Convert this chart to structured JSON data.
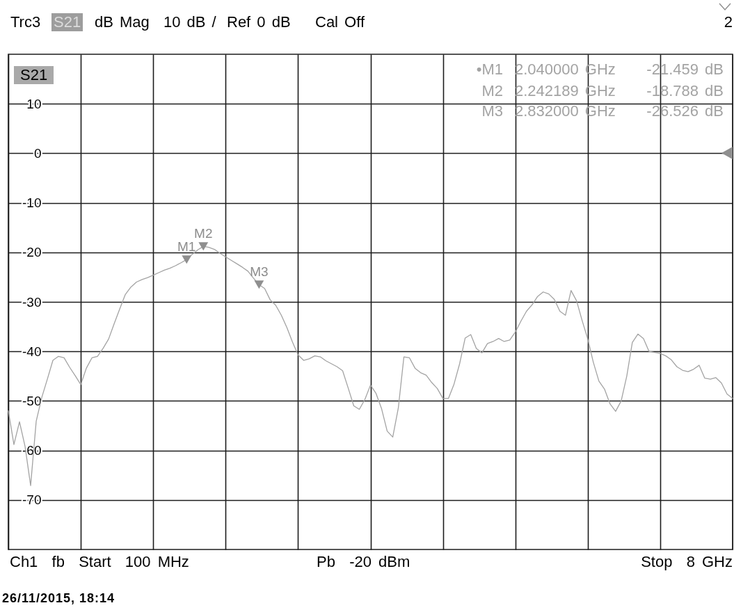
{
  "chart_data": {
    "type": "line",
    "categories": [
      null,
      null,
      null,
      null,
      null,
      null,
      null,
      null,
      null,
      null,
      null,
      null,
      null,
      null,
      null,
      null,
      null,
      null,
      null,
      null,
      null,
      null,
      null,
      null,
      null,
      null,
      null,
      null,
      null,
      null,
      null,
      null,
      null,
      null,
      null,
      null,
      null,
      null,
      null,
      null,
      null,
      null,
      null,
      null,
      null,
      null,
      null,
      null,
      null,
      null,
      null,
      null,
      null,
      null,
      null,
      null,
      null,
      null,
      null,
      null,
      null,
      null,
      null,
      null,
      null,
      null,
      null,
      null,
      null,
      null,
      null,
      null,
      null,
      null,
      null,
      null,
      null,
      null,
      null,
      null,
      null,
      null,
      null,
      null,
      null,
      null,
      null,
      null,
      null,
      null,
      null,
      null,
      null,
      null,
      null,
      null,
      null,
      null,
      null,
      null,
      null,
      null,
      null,
      null,
      null,
      null,
      null,
      null,
      null,
      null,
      null,
      null,
      null,
      null,
      null,
      null,
      null,
      null,
      null,
      null,
      null,
      null,
      null,
      null,
      null,
      null,
      null,
      null,
      null,
      null,
      null
    ],
    "ylim": [
      -80,
      20
    ],
    "yticks": [
      10,
      0,
      -10,
      -20,
      -30,
      -40,
      -50,
      -60,
      -70
    ],
    "tick_labels": "y",
    "grid": true,
    "series": [
      {
        "color": "#a3a3a3",
        "values": [
          -52,
          -58.8,
          -54.2,
          -59.2,
          -67.1,
          -54.1,
          -49.3,
          -45.6,
          -41.8,
          -41.0,
          -41.3,
          -43.2,
          -44.9,
          -46.7,
          -43.4,
          -41.3,
          -41.0,
          -39.4,
          -37.5,
          -34.4,
          -31.4,
          -28.5,
          -27.0,
          -26.0,
          -25.5,
          -25.1,
          -24.6,
          -24.1,
          -23.6,
          -23.2,
          -22.7,
          -22.1,
          -21.459,
          -20.4,
          -19.5,
          -18.788,
          -19.0,
          -19.4,
          -20.2,
          -20.9,
          -21.6,
          -22.3,
          -23.0,
          -23.8,
          -25.2,
          -26.526,
          -27.3,
          -29.6,
          -30.7,
          -32.7,
          -35.2,
          -38.1,
          -40.7,
          -41.8,
          -41.5,
          -40.9,
          -41.1,
          -41.9,
          -42.5,
          -43.1,
          -43.9,
          -47.4,
          -51.0,
          -51.7,
          -49.7,
          -46.8,
          -48.5,
          -51.6,
          -56.1,
          -57.3,
          -51.4,
          -41.1,
          -41.3,
          -43.4,
          -44.3,
          -44.8,
          -46.3,
          -47.5,
          -49.5,
          -49.5,
          -46.6,
          -42.5,
          -37.3,
          -36.6,
          -39.4,
          -40.3,
          -38.4,
          -38.0,
          -37.4,
          -38.0,
          -37.7,
          -36.1,
          -33.9,
          -31.9,
          -30.6,
          -28.9,
          -28.0,
          -28.4,
          -29.5,
          -31.9,
          -32.7,
          -27.7,
          -29.8,
          -33.8,
          -37.5,
          -42.2,
          -46.0,
          -47.6,
          -50.6,
          -52.1,
          -50.0,
          -45.0,
          -38.2,
          -36.5,
          -37.4,
          -40.0,
          -40.2,
          -40.4,
          -40.9,
          -41.7,
          -43.1,
          -43.8,
          -44.1,
          -43.6,
          -42.8,
          -45.4,
          -45.6,
          -45.3,
          -46.4,
          -48.6,
          -49.5
        ]
      },
      {
        "type": "scatter",
        "marker": "triangle",
        "color": "#8f8f8f",
        "values": [
          null,
          null,
          null,
          null,
          null,
          null,
          null,
          null,
          null,
          null,
          null,
          null,
          null,
          null,
          null,
          null,
          null,
          null,
          null,
          null,
          null,
          null,
          null,
          null,
          null,
          null,
          null,
          null,
          null,
          null,
          null,
          null,
          -21.459,
          null,
          null,
          -18.788,
          null,
          null,
          null,
          null,
          null,
          null,
          null,
          null,
          null,
          -26.526,
          null,
          null,
          null,
          null,
          null,
          null,
          null,
          null,
          null,
          null,
          null,
          null,
          null,
          null,
          null,
          null,
          null,
          null,
          null,
          null,
          null,
          null,
          null,
          null,
          null,
          null,
          null,
          null,
          null,
          null,
          null,
          null,
          null,
          null,
          null,
          null,
          null,
          null,
          null,
          null,
          null,
          null,
          null,
          null,
          null,
          null,
          null,
          null,
          null,
          null,
          null,
          null,
          null,
          null,
          null,
          null,
          null,
          null,
          null,
          null,
          null,
          null,
          null,
          null,
          null,
          null,
          null,
          null,
          null,
          null,
          null,
          null,
          null,
          null,
          null,
          null,
          null,
          null,
          null,
          null,
          null,
          null,
          null,
          null,
          null
        ],
        "value_labels": [
          null,
          null,
          null,
          null,
          null,
          null,
          null,
          null,
          null,
          null,
          null,
          null,
          null,
          null,
          null,
          null,
          null,
          null,
          null,
          null,
          null,
          null,
          null,
          null,
          null,
          null,
          null,
          null,
          null,
          null,
          null,
          null,
          "M1",
          null,
          null,
          "M2",
          null,
          null,
          null,
          null,
          null,
          null,
          null,
          null,
          null,
          "M3",
          null,
          null,
          null,
          null,
          null,
          null,
          null,
          null,
          null,
          null,
          null,
          null,
          null,
          null,
          null,
          null,
          null,
          null,
          null,
          null,
          null,
          null,
          null,
          null,
          null,
          null,
          null,
          null,
          null,
          null,
          null,
          null,
          null,
          null,
          null,
          null,
          null,
          null,
          null,
          null,
          null,
          null,
          null,
          null,
          null,
          null,
          null,
          null,
          null,
          null,
          null,
          null,
          null,
          null,
          null,
          null,
          null,
          null,
          null,
          null,
          null,
          null,
          null,
          null,
          null,
          null,
          null,
          null,
          null,
          null,
          null,
          null,
          null,
          null,
          null,
          null,
          null,
          null,
          null,
          null,
          null,
          null,
          null,
          null,
          null
        ]
      }
    ],
    "annotations": [
      "Trc3",
      "S21",
      "dB Mag",
      "10 dB /",
      "Ref 0 dB",
      "Cal Off",
      "2",
      "S21",
      "•M1  2.040000 GHz  -21.459 dB",
      "M2  2.242189 GHz  -18.788 dB",
      "M3  2.832000 GHz  -26.526 dB",
      "Ch1  fb  Start  100 MHz",
      "Pb  -20 dBm",
      "Stop  8 GHz",
      "26/11/2015, 18:14"
    ]
  }
}
